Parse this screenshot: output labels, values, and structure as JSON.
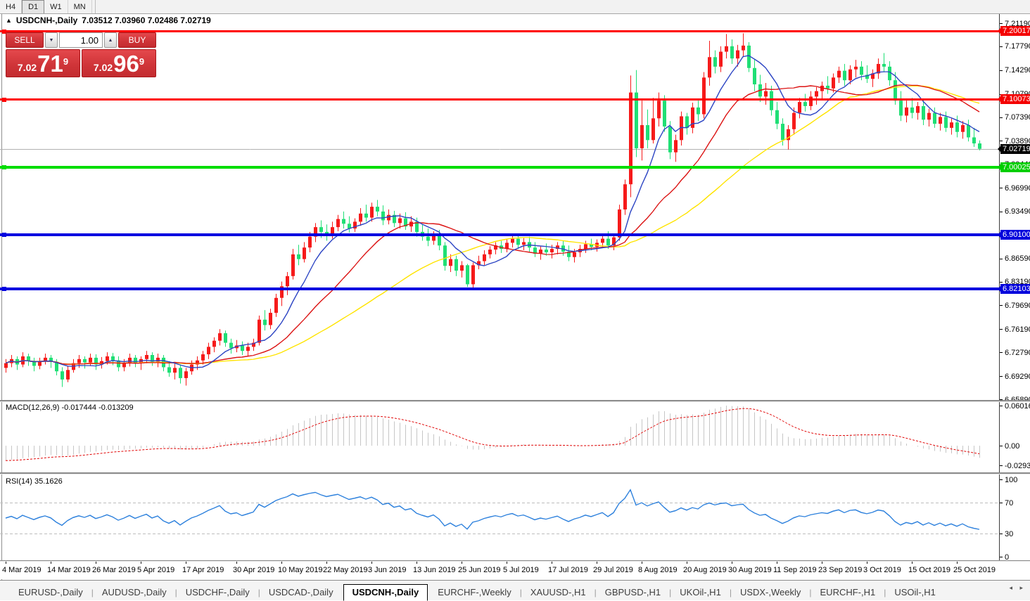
{
  "toolbar": {
    "timeframes": [
      {
        "label": "H4",
        "active": false
      },
      {
        "label": "D1",
        "active": true
      },
      {
        "label": "W1",
        "active": false
      },
      {
        "label": "MN",
        "active": false
      }
    ]
  },
  "title": {
    "symbol": "USDCNH-,Daily",
    "ohlc_text": "7.03512 7.03960 7.02486 7.02719"
  },
  "trade_panel": {
    "sell_label": "SELL",
    "buy_label": "BUY",
    "volume": "1.00",
    "sell_quote": {
      "small": "7.02",
      "big": "71",
      "sup": "9"
    },
    "buy_quote": {
      "small": "7.02",
      "big": "96",
      "sup": "9"
    }
  },
  "price_axis": {
    "ticks": [
      "7.21190",
      "7.17790",
      "7.14290",
      "7.10790",
      "7.07390",
      "7.03890",
      "7.00440",
      "6.96990",
      "6.93490",
      "6.89990",
      "6.86590",
      "6.83190",
      "6.79690",
      "6.76190",
      "6.72790",
      "6.69290",
      "6.65890"
    ],
    "tags": [
      {
        "text": "7.20017",
        "value": 7.20017,
        "bg": "#f40000",
        "fg": "#ffffff"
      },
      {
        "text": "7.10073",
        "value": 7.10073,
        "bg": "#f40000",
        "fg": "#ffffff"
      },
      {
        "text": "7.02719",
        "value": 7.02719,
        "bg": "#000000",
        "fg": "#ffffff"
      },
      {
        "text": "7.00025",
        "value": 7.00025,
        "bg": "#00ce00",
        "fg": "#ffffff"
      },
      {
        "text": "6.90100",
        "value": 6.901,
        "bg": "#0000dc",
        "fg": "#ffffff"
      },
      {
        "text": "6.82103",
        "value": 6.82103,
        "bg": "#0000dc",
        "fg": "#ffffff"
      }
    ]
  },
  "levels": [
    {
      "price": 7.20017,
      "color": "#ff0000",
      "thickness": 3
    },
    {
      "price": 7.10073,
      "color": "#ff0000",
      "thickness": 3
    },
    {
      "price": 7.00025,
      "color": "#00dd00",
      "thickness": 4
    },
    {
      "price": 6.901,
      "color": "#0000e0",
      "thickness": 4
    },
    {
      "price": 6.82103,
      "color": "#0000e0",
      "thickness": 4
    }
  ],
  "bid_line": {
    "price": 7.02719,
    "color": "#b2b2b2"
  },
  "macd_panel": {
    "label_text": "MACD(12,26,9) -0.017444 -0.013209",
    "axis": [
      {
        "text": "0.060161",
        "value": 0.060161
      },
      {
        "text": "0.00",
        "value": 0
      },
      {
        "text": "-0.029378",
        "value": -0.029378
      }
    ],
    "max": 0.060161,
    "min": -0.029378
  },
  "rsi_panel": {
    "label_text": "RSI(14) 35.1626",
    "axis": [
      {
        "text": "100",
        "value": 100
      },
      {
        "text": "70",
        "value": 70
      },
      {
        "text": "30",
        "value": 30
      },
      {
        "text": "0",
        "value": 0
      }
    ],
    "dashed_levels": [
      70,
      30
    ]
  },
  "time_axis": {
    "labels": [
      {
        "text": "4 Mar 2019",
        "i": 0
      },
      {
        "text": "14 Mar 2019",
        "i": 8
      },
      {
        "text": "26 Mar 2019",
        "i": 16
      },
      {
        "text": "5 Apr 2019",
        "i": 24
      },
      {
        "text": "17 Apr 2019",
        "i": 32
      },
      {
        "text": "30 Apr 2019",
        "i": 41
      },
      {
        "text": "10 May 2019",
        "i": 49
      },
      {
        "text": "22 May 2019",
        "i": 57
      },
      {
        "text": "3 Jun 2019",
        "i": 65
      },
      {
        "text": "13 Jun 2019",
        "i": 73
      },
      {
        "text": "25 Jun 2019",
        "i": 81
      },
      {
        "text": "5 Jul 2019",
        "i": 89
      },
      {
        "text": "17 Jul 2019",
        "i": 97
      },
      {
        "text": "29 Jul 2019",
        "i": 105
      },
      {
        "text": "8 Aug 2019",
        "i": 113
      },
      {
        "text": "20 Aug 2019",
        "i": 121
      },
      {
        "text": "30 Aug 2019",
        "i": 129
      },
      {
        "text": "11 Sep 2019",
        "i": 137
      },
      {
        "text": "23 Sep 2019",
        "i": 145
      },
      {
        "text": "3 Oct 2019",
        "i": 153
      },
      {
        "text": "15 Oct 2019",
        "i": 161
      },
      {
        "text": "25 Oct 2019",
        "i": 169
      }
    ]
  },
  "tabs": {
    "items": [
      {
        "label": "EURUSD-,Daily",
        "active": false
      },
      {
        "label": "AUDUSD-,Daily",
        "active": false
      },
      {
        "label": "USDCHF-,Daily",
        "active": false
      },
      {
        "label": "USDCAD-,Daily",
        "active": false
      },
      {
        "label": "USDCNH-,Daily",
        "active": true
      },
      {
        "label": "EURCHF-,Weekly",
        "active": false
      },
      {
        "label": "XAUUSD-,H1",
        "active": false
      },
      {
        "label": "GBPUSD-,H1",
        "active": false
      },
      {
        "label": "UKOil-,H1",
        "active": false
      },
      {
        "label": "USDX-,Weekly",
        "active": false
      },
      {
        "label": "EURCHF-,H1",
        "active": false
      },
      {
        "label": "USOil-,H1",
        "active": false
      }
    ],
    "nav_arrows": "◂ ▸"
  },
  "chart_data": {
    "type": "candlestick",
    "symbol": "USDCNH",
    "timeframe": "Daily",
    "price_range": {
      "top": 7.2119,
      "bottom": 6.6589
    },
    "colors": {
      "up": "#f61a1a",
      "down": "#1fdf75",
      "ma_fast": "#2e46c4",
      "ma_mid": "#dc1414",
      "ma_slow": "#ffe400",
      "macd_hist": "#c6c6c6",
      "macd_signal": "#e00000",
      "rsi": "#2f82dd",
      "rsi_dash": "#bdbdbd"
    },
    "ma_periods": {
      "fast": 8,
      "mid": 20,
      "slow": 40
    },
    "candles": [
      [
        6.705,
        6.718,
        6.698,
        6.712
      ],
      [
        6.712,
        6.724,
        6.706,
        6.718
      ],
      [
        6.718,
        6.722,
        6.702,
        6.71
      ],
      [
        6.71,
        6.728,
        6.706,
        6.722
      ],
      [
        6.722,
        6.726,
        6.708,
        6.715
      ],
      [
        6.715,
        6.72,
        6.7,
        6.708
      ],
      [
        6.708,
        6.72,
        6.703,
        6.715
      ],
      [
        6.715,
        6.726,
        6.71,
        6.72
      ],
      [
        6.72,
        6.724,
        6.705,
        6.714
      ],
      [
        6.714,
        6.718,
        6.694,
        6.7
      ],
      [
        6.7,
        6.706,
        6.677,
        6.688
      ],
      [
        6.688,
        6.708,
        6.684,
        6.702
      ],
      [
        6.702,
        6.718,
        6.698,
        6.712
      ],
      [
        6.712,
        6.724,
        6.705,
        6.718
      ],
      [
        6.718,
        6.722,
        6.704,
        6.713
      ],
      [
        6.713,
        6.726,
        6.708,
        6.72
      ],
      [
        6.72,
        6.725,
        6.702,
        6.71
      ],
      [
        6.71,
        6.721,
        6.704,
        6.715
      ],
      [
        6.715,
        6.728,
        6.71,
        6.722
      ],
      [
        6.722,
        6.727,
        6.709,
        6.716
      ],
      [
        6.716,
        6.722,
        6.7,
        6.706
      ],
      [
        6.706,
        6.718,
        6.7,
        6.712
      ],
      [
        6.712,
        6.726,
        6.707,
        6.72
      ],
      [
        6.72,
        6.724,
        6.706,
        6.712
      ],
      [
        6.712,
        6.722,
        6.702,
        6.718
      ],
      [
        6.718,
        6.73,
        6.712,
        6.724
      ],
      [
        6.724,
        6.728,
        6.708,
        6.714
      ],
      [
        6.714,
        6.726,
        6.706,
        6.72
      ],
      [
        6.72,
        6.724,
        6.7,
        6.706
      ],
      [
        6.706,
        6.715,
        6.692,
        6.698
      ],
      [
        6.698,
        6.712,
        6.688,
        6.705
      ],
      [
        6.705,
        6.71,
        6.682,
        6.69
      ],
      [
        6.69,
        6.705,
        6.679,
        6.7
      ],
      [
        6.7,
        6.716,
        6.695,
        6.71
      ],
      [
        6.71,
        6.722,
        6.702,
        6.716
      ],
      [
        6.716,
        6.73,
        6.71,
        6.725
      ],
      [
        6.725,
        6.742,
        6.718,
        6.736
      ],
      [
        6.736,
        6.75,
        6.728,
        6.745
      ],
      [
        6.745,
        6.762,
        6.738,
        6.756
      ],
      [
        6.756,
        6.76,
        6.736,
        6.742
      ],
      [
        6.742,
        6.748,
        6.726,
        6.734
      ],
      [
        6.734,
        6.746,
        6.728,
        6.738
      ],
      [
        6.738,
        6.744,
        6.724,
        6.73
      ],
      [
        6.73,
        6.742,
        6.722,
        6.736
      ],
      [
        6.736,
        6.748,
        6.73,
        6.742
      ],
      [
        6.742,
        6.782,
        6.738,
        6.776
      ],
      [
        6.776,
        6.79,
        6.76,
        6.768
      ],
      [
        6.768,
        6.792,
        6.762,
        6.786
      ],
      [
        6.786,
        6.814,
        6.78,
        6.808
      ],
      [
        6.808,
        6.832,
        6.796,
        6.825
      ],
      [
        6.825,
        6.846,
        6.812,
        6.84
      ],
      [
        6.84,
        6.88,
        6.835,
        6.872
      ],
      [
        6.872,
        6.886,
        6.856,
        6.865
      ],
      [
        6.865,
        6.89,
        6.86,
        6.882
      ],
      [
        6.882,
        6.905,
        6.875,
        6.898
      ],
      [
        6.898,
        6.918,
        6.89,
        6.912
      ],
      [
        6.912,
        6.922,
        6.896,
        6.905
      ],
      [
        6.905,
        6.916,
        6.892,
        6.9
      ],
      [
        6.9,
        6.92,
        6.895,
        6.912
      ],
      [
        6.912,
        6.93,
        6.906,
        6.924
      ],
      [
        6.924,
        6.935,
        6.91,
        6.917
      ],
      [
        6.917,
        6.928,
        6.904,
        6.91
      ],
      [
        6.91,
        6.925,
        6.905,
        6.92
      ],
      [
        6.92,
        6.94,
        6.914,
        6.932
      ],
      [
        6.932,
        6.945,
        6.92,
        6.926
      ],
      [
        6.926,
        6.948,
        6.92,
        6.942
      ],
      [
        6.942,
        6.952,
        6.928,
        6.935
      ],
      [
        6.935,
        6.944,
        6.915,
        6.922
      ],
      [
        6.922,
        6.938,
        6.916,
        6.93
      ],
      [
        6.93,
        6.936,
        6.912,
        6.918
      ],
      [
        6.918,
        6.932,
        6.91,
        6.925
      ],
      [
        6.925,
        6.934,
        6.908,
        6.913
      ],
      [
        6.913,
        6.928,
        6.905,
        6.92
      ],
      [
        6.92,
        6.926,
        6.898,
        6.905
      ],
      [
        6.905,
        6.916,
        6.892,
        6.898
      ],
      [
        6.898,
        6.91,
        6.884,
        6.892
      ],
      [
        6.892,
        6.906,
        6.886,
        6.9
      ],
      [
        6.9,
        6.908,
        6.878,
        6.885
      ],
      [
        6.885,
        6.89,
        6.848,
        6.855
      ],
      [
        6.855,
        6.872,
        6.846,
        6.865
      ],
      [
        6.865,
        6.87,
        6.84,
        6.848
      ],
      [
        6.848,
        6.862,
        6.838,
        6.856
      ],
      [
        6.856,
        6.858,
        6.824,
        6.828
      ],
      [
        6.828,
        6.86,
        6.8211,
        6.856
      ],
      [
        6.856,
        6.87,
        6.85,
        6.862
      ],
      [
        6.862,
        6.878,
        6.856,
        6.872
      ],
      [
        6.872,
        6.884,
        6.866,
        6.879
      ],
      [
        6.879,
        6.89,
        6.872,
        6.885
      ],
      [
        6.885,
        6.892,
        6.874,
        6.88
      ],
      [
        6.88,
        6.894,
        6.875,
        6.889
      ],
      [
        6.889,
        6.9,
        6.882,
        6.895
      ],
      [
        6.895,
        6.902,
        6.88,
        6.886
      ],
      [
        6.886,
        6.896,
        6.878,
        6.89
      ],
      [
        6.89,
        6.898,
        6.876,
        6.882
      ],
      [
        6.882,
        6.89,
        6.868,
        6.873
      ],
      [
        6.873,
        6.884,
        6.864,
        6.879
      ],
      [
        6.879,
        6.888,
        6.87,
        6.875
      ],
      [
        6.875,
        6.886,
        6.866,
        6.88
      ],
      [
        6.88,
        6.89,
        6.872,
        6.885
      ],
      [
        6.885,
        6.892,
        6.87,
        6.876
      ],
      [
        6.876,
        6.885,
        6.862,
        6.868
      ],
      [
        6.868,
        6.88,
        6.86,
        6.875
      ],
      [
        6.875,
        6.886,
        6.868,
        6.88
      ],
      [
        6.88,
        6.892,
        6.874,
        6.887
      ],
      [
        6.887,
        6.895,
        6.878,
        6.883
      ],
      [
        6.883,
        6.894,
        6.876,
        6.889
      ],
      [
        6.889,
        6.9,
        6.882,
        6.895
      ],
      [
        6.895,
        6.906,
        6.88,
        6.885
      ],
      [
        6.885,
        6.902,
        6.878,
        6.897
      ],
      [
        6.897,
        6.945,
        6.892,
        6.938
      ],
      [
        6.938,
        6.982,
        6.93,
        6.975
      ],
      [
        6.975,
        7.135,
        6.956,
        7.11
      ],
      [
        7.11,
        7.143,
        7.015,
        7.028
      ],
      [
        7.028,
        7.098,
        7.01,
        7.062
      ],
      [
        7.062,
        7.085,
        7.028,
        7.04
      ],
      [
        7.04,
        7.102,
        7.035,
        7.072
      ],
      [
        7.072,
        7.11,
        7.06,
        7.098
      ],
      [
        7.098,
        7.106,
        7.052,
        7.06
      ],
      [
        7.06,
        7.068,
        7.012,
        7.022
      ],
      [
        7.022,
        7.048,
        7.008,
        7.04
      ],
      [
        7.04,
        7.082,
        7.032,
        7.075
      ],
      [
        7.075,
        7.08,
        7.048,
        7.058
      ],
      [
        7.058,
        7.095,
        7.05,
        7.088
      ],
      [
        7.088,
        7.098,
        7.068,
        7.078
      ],
      [
        7.078,
        7.14,
        7.072,
        7.132
      ],
      [
        7.132,
        7.186,
        7.12,
        7.162
      ],
      [
        7.162,
        7.172,
        7.138,
        7.148
      ],
      [
        7.148,
        7.178,
        7.14,
        7.17
      ],
      [
        7.17,
        7.196,
        7.16,
        7.178
      ],
      [
        7.178,
        7.188,
        7.152,
        7.16
      ],
      [
        7.16,
        7.18,
        7.148,
        7.172
      ],
      [
        7.172,
        7.197,
        7.162,
        7.179
      ],
      [
        7.179,
        7.184,
        7.14,
        7.146
      ],
      [
        7.146,
        7.158,
        7.112,
        7.122
      ],
      [
        7.122,
        7.136,
        7.096,
        7.104
      ],
      [
        7.104,
        7.124,
        7.092,
        7.112
      ],
      [
        7.112,
        7.12,
        7.076,
        7.084
      ],
      [
        7.084,
        7.096,
        7.056,
        7.064
      ],
      [
        7.064,
        7.072,
        7.032,
        7.04
      ],
      [
        7.04,
        7.062,
        7.026,
        7.056
      ],
      [
        7.056,
        7.088,
        7.048,
        7.08
      ],
      [
        7.08,
        7.102,
        7.072,
        7.096
      ],
      [
        7.096,
        7.108,
        7.082,
        7.09
      ],
      [
        7.09,
        7.112,
        7.084,
        7.104
      ],
      [
        7.104,
        7.118,
        7.092,
        7.112
      ],
      [
        7.112,
        7.126,
        7.1,
        7.12
      ],
      [
        7.12,
        7.134,
        7.108,
        7.116
      ],
      [
        7.116,
        7.138,
        7.11,
        7.132
      ],
      [
        7.132,
        7.148,
        7.124,
        7.142
      ],
      [
        7.142,
        7.152,
        7.12,
        7.128
      ],
      [
        7.128,
        7.15,
        7.122,
        7.144
      ],
      [
        7.144,
        7.158,
        7.132,
        7.148
      ],
      [
        7.148,
        7.156,
        7.128,
        7.136
      ],
      [
        7.136,
        7.15,
        7.124,
        7.13
      ],
      [
        7.13,
        7.144,
        7.118,
        7.138
      ],
      [
        7.138,
        7.16,
        7.13,
        7.152
      ],
      [
        7.152,
        7.168,
        7.14,
        7.148
      ],
      [
        7.148,
        7.156,
        7.12,
        7.128
      ],
      [
        7.128,
        7.14,
        7.092,
        7.098
      ],
      [
        7.098,
        7.112,
        7.068,
        7.076
      ],
      [
        7.076,
        7.098,
        7.066,
        7.088
      ],
      [
        7.088,
        7.102,
        7.072,
        7.08
      ],
      [
        7.08,
        7.096,
        7.07,
        7.09
      ],
      [
        7.09,
        7.098,
        7.062,
        7.07
      ],
      [
        7.07,
        7.086,
        7.06,
        7.08
      ],
      [
        7.08,
        7.088,
        7.058,
        7.064
      ],
      [
        7.064,
        7.08,
        7.054,
        7.074
      ],
      [
        7.074,
        7.082,
        7.052,
        7.058
      ],
      [
        7.058,
        7.072,
        7.048,
        7.066
      ],
      [
        7.066,
        7.076,
        7.044,
        7.052
      ],
      [
        7.052,
        7.068,
        7.042,
        7.062
      ],
      [
        7.062,
        7.07,
        7.038,
        7.044
      ],
      [
        7.044,
        7.058,
        7.03,
        7.0351
      ],
      [
        7.0351,
        7.0396,
        7.0249,
        7.0272
      ]
    ]
  }
}
